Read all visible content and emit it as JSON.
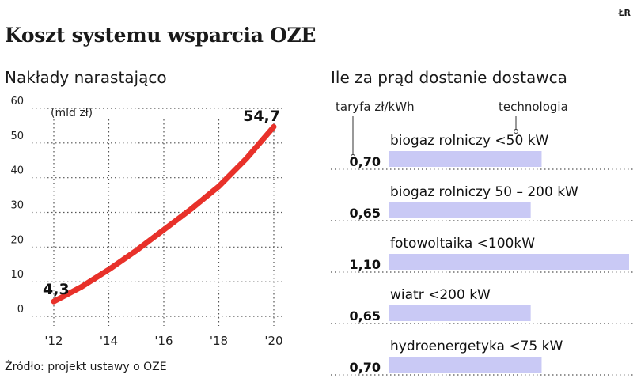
{
  "logo": "ŁR",
  "title": "Koszt systemu wsparcia OZE",
  "source": "Źródło: projekt ustawy o OZE",
  "chart_data": [
    {
      "type": "line",
      "title": "Nakłady narastająco",
      "ylabel": "(mld zł)",
      "ylim": [
        0,
        60
      ],
      "yticks": [
        "0",
        "10",
        "20",
        "30",
        "40",
        "50",
        "60"
      ],
      "xlim": [
        2012,
        2020
      ],
      "xticks": [
        "'12",
        "'14",
        "'16",
        "'18",
        "'20"
      ],
      "grid": true,
      "color": "#e8312a",
      "series": [
        {
          "x": [
            2012,
            2013,
            2014,
            2015,
            2016,
            2017,
            2018,
            2019,
            2020
          ],
          "values": [
            4.3,
            8.5,
            13.5,
            19,
            25,
            31,
            37.5,
            45.5,
            54.7
          ]
        }
      ],
      "data_labels": [
        {
          "x": 2012,
          "y": 4.3,
          "text": "4,3"
        },
        {
          "x": 2020,
          "y": 54.7,
          "text": "54,7"
        }
      ]
    },
    {
      "type": "bar",
      "title": "Ile za prąd dostanie dostawca",
      "ylabel": "taryfa zł/kWh",
      "xlabel": "technologia",
      "orientation": "horizontal",
      "xlim": [
        0,
        1.1
      ],
      "bar_color": "#c9c9f5",
      "categories": [
        "biogaz rolniczy <50 kW",
        "biogaz rolniczy 50 – 200 kW",
        "fotowoltaika <100kW",
        "wiatr <200 kW",
        "hydroenergetyka <75 kW"
      ],
      "values": [
        0.7,
        0.65,
        1.1,
        0.65,
        0.7
      ],
      "value_labels": [
        "0,70",
        "0,65",
        "1,10",
        "0,65",
        "0,70"
      ]
    }
  ]
}
